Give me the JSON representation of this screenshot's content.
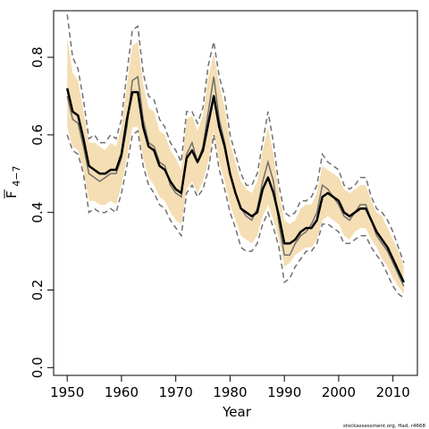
{
  "chart_data": {
    "type": "line",
    "xlabel": "Year",
    "ylabel": "F",
    "ylabel_subscript": "4−7",
    "footer": "stockassessment.org, Had, r4668",
    "xlim": [
      1947.5,
      2014.5
    ],
    "ylim": [
      -0.02,
      0.92
    ],
    "x_ticks": [
      1950,
      1960,
      1970,
      1980,
      1990,
      2000,
      2010
    ],
    "y_ticks": [
      0.0,
      0.2,
      0.4,
      0.6,
      0.8
    ],
    "y_tick_labels": [
      "0.0",
      "0.2",
      "0.4",
      "0.6",
      "0.8"
    ],
    "grid": false,
    "colors": {
      "band": "#f5deb3",
      "estimate": "#000000",
      "comparison": "#707070",
      "bounds": "#707070"
    },
    "x": [
      1950,
      1951,
      1952,
      1953,
      1954,
      1955,
      1956,
      1957,
      1958,
      1959,
      1960,
      1961,
      1962,
      1963,
      1964,
      1965,
      1966,
      1967,
      1968,
      1969,
      1970,
      1971,
      1972,
      1973,
      1974,
      1975,
      1976,
      1977,
      1978,
      1979,
      1980,
      1981,
      1982,
      1983,
      1984,
      1985,
      1986,
      1987,
      1988,
      1989,
      1990,
      1991,
      1992,
      1993,
      1994,
      1995,
      1996,
      1997,
      1998,
      1999,
      2000,
      2001,
      2002,
      2003,
      2004,
      2005,
      2006,
      2007,
      2008,
      2009,
      2010,
      2011,
      2012
    ],
    "series": [
      {
        "role": "estimate",
        "values": [
          0.72,
          0.66,
          0.65,
          0.59,
          0.52,
          0.51,
          0.5,
          0.5,
          0.51,
          0.51,
          0.55,
          0.64,
          0.71,
          0.71,
          0.62,
          0.57,
          0.56,
          0.52,
          0.51,
          0.48,
          0.46,
          0.45,
          0.54,
          0.56,
          0.53,
          0.56,
          0.63,
          0.7,
          0.62,
          0.57,
          0.5,
          0.45,
          0.41,
          0.4,
          0.39,
          0.4,
          0.46,
          0.49,
          0.45,
          0.39,
          0.32,
          0.32,
          0.33,
          0.35,
          0.36,
          0.36,
          0.38,
          0.44,
          0.45,
          0.44,
          0.43,
          0.4,
          0.39,
          0.4,
          0.41,
          0.41,
          0.38,
          0.35,
          0.33,
          0.31,
          0.28,
          0.25,
          0.22
        ]
      },
      {
        "role": "comparison",
        "values": [
          0.7,
          0.64,
          0.63,
          0.57,
          0.5,
          0.49,
          0.48,
          0.49,
          0.5,
          0.5,
          0.54,
          0.62,
          0.74,
          0.75,
          0.64,
          0.58,
          0.57,
          0.53,
          0.52,
          0.47,
          0.45,
          0.44,
          0.55,
          0.58,
          0.53,
          0.57,
          0.66,
          0.75,
          0.64,
          0.58,
          0.5,
          0.45,
          0.41,
          0.39,
          0.38,
          0.41,
          0.48,
          0.53,
          0.48,
          0.37,
          0.29,
          0.29,
          0.32,
          0.34,
          0.35,
          0.37,
          0.4,
          0.47,
          0.46,
          0.44,
          0.42,
          0.39,
          0.38,
          0.4,
          0.42,
          0.42,
          0.38,
          0.34,
          0.32,
          0.3,
          0.27,
          0.24,
          0.21
        ]
      },
      {
        "role": "upper_bound",
        "values": [
          0.91,
          0.8,
          0.77,
          0.69,
          0.59,
          0.6,
          0.58,
          0.58,
          0.6,
          0.59,
          0.64,
          0.76,
          0.87,
          0.88,
          0.76,
          0.7,
          0.69,
          0.64,
          0.62,
          0.58,
          0.56,
          0.53,
          0.66,
          0.66,
          0.63,
          0.67,
          0.78,
          0.84,
          0.75,
          0.7,
          0.6,
          0.55,
          0.5,
          0.47,
          0.47,
          0.5,
          0.58,
          0.66,
          0.58,
          0.47,
          0.4,
          0.39,
          0.4,
          0.43,
          0.43,
          0.44,
          0.47,
          0.55,
          0.53,
          0.52,
          0.51,
          0.47,
          0.46,
          0.47,
          0.49,
          0.49,
          0.44,
          0.41,
          0.4,
          0.38,
          0.35,
          0.31,
          0.27
        ]
      },
      {
        "role": "lower_bound",
        "values": [
          0.6,
          0.56,
          0.55,
          0.5,
          0.4,
          0.41,
          0.4,
          0.4,
          0.41,
          0.4,
          0.45,
          0.52,
          0.6,
          0.61,
          0.52,
          0.47,
          0.45,
          0.42,
          0.41,
          0.38,
          0.36,
          0.34,
          0.45,
          0.47,
          0.44,
          0.46,
          0.51,
          0.6,
          0.51,
          0.46,
          0.4,
          0.36,
          0.31,
          0.3,
          0.3,
          0.32,
          0.37,
          0.4,
          0.36,
          0.31,
          0.22,
          0.23,
          0.26,
          0.28,
          0.3,
          0.3,
          0.32,
          0.37,
          0.37,
          0.36,
          0.35,
          0.32,
          0.32,
          0.33,
          0.34,
          0.34,
          0.31,
          0.29,
          0.27,
          0.24,
          0.21,
          0.19,
          0.18
        ]
      },
      {
        "role": "band_upper",
        "values": [
          0.85,
          0.76,
          0.74,
          0.66,
          0.58,
          0.58,
          0.57,
          0.56,
          0.58,
          0.57,
          0.62,
          0.73,
          0.83,
          0.84,
          0.73,
          0.67,
          0.66,
          0.61,
          0.6,
          0.56,
          0.54,
          0.51,
          0.64,
          0.65,
          0.61,
          0.65,
          0.75,
          0.81,
          0.73,
          0.67,
          0.58,
          0.53,
          0.48,
          0.46,
          0.45,
          0.48,
          0.56,
          0.62,
          0.55,
          0.45,
          0.38,
          0.37,
          0.38,
          0.41,
          0.42,
          0.42,
          0.45,
          0.52,
          0.51,
          0.5,
          0.49,
          0.46,
          0.45,
          0.46,
          0.47,
          0.47,
          0.43,
          0.4,
          0.39,
          0.36,
          0.33,
          0.3,
          0.26
        ]
      },
      {
        "role": "band_lower",
        "values": [
          0.62,
          0.57,
          0.56,
          0.51,
          0.43,
          0.43,
          0.42,
          0.42,
          0.43,
          0.42,
          0.47,
          0.54,
          0.62,
          0.62,
          0.54,
          0.49,
          0.47,
          0.44,
          0.43,
          0.4,
          0.38,
          0.37,
          0.46,
          0.48,
          0.45,
          0.48,
          0.53,
          0.61,
          0.53,
          0.48,
          0.42,
          0.38,
          0.34,
          0.33,
          0.32,
          0.34,
          0.39,
          0.42,
          0.38,
          0.33,
          0.26,
          0.27,
          0.29,
          0.3,
          0.31,
          0.31,
          0.33,
          0.38,
          0.39,
          0.38,
          0.37,
          0.34,
          0.33,
          0.35,
          0.36,
          0.36,
          0.33,
          0.31,
          0.28,
          0.26,
          0.23,
          0.21,
          0.19
        ]
      }
    ]
  }
}
